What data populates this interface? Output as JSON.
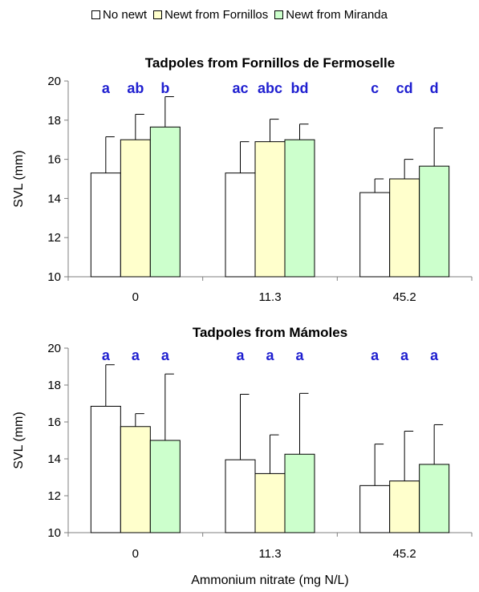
{
  "legend": [
    {
      "label": "No newt",
      "color": "#ffffff"
    },
    {
      "label": "Newt from Fornillos",
      "color": "#ffffcc"
    },
    {
      "label": "Newt from Miranda",
      "color": "#ccffcc"
    }
  ],
  "colors": {
    "significance_letters": "#1f1fd0"
  },
  "chart_data": [
    {
      "type": "bar",
      "title": "Tadpoles from Fornillos de Fermoselle",
      "ylabel": "SVL (mm)",
      "xlabel": "",
      "ylim": [
        10,
        20
      ],
      "yticks": [
        10,
        12,
        14,
        16,
        18,
        20
      ],
      "categories": [
        "0",
        "11.3",
        "45.2"
      ],
      "series": [
        {
          "name": "No newt",
          "values": [
            15.3,
            15.3,
            14.3
          ],
          "error_upper": [
            17.15,
            16.9,
            15.0
          ]
        },
        {
          "name": "Newt from Fornillos",
          "values": [
            17.0,
            16.9,
            15.0
          ],
          "error_upper": [
            18.3,
            18.05,
            16.0
          ]
        },
        {
          "name": "Newt from Miranda",
          "values": [
            17.65,
            17.0,
            15.65
          ],
          "error_upper": [
            19.2,
            17.8,
            17.6
          ]
        }
      ],
      "significance": [
        [
          "a",
          "ab",
          "b"
        ],
        [
          "ac",
          "abc",
          "bd"
        ],
        [
          "c",
          "cd",
          "d"
        ]
      ],
      "grid": false
    },
    {
      "type": "bar",
      "title": "Tadpoles from Mámoles",
      "ylabel": "SVL (mm)",
      "xlabel": "Ammonium nitrate (mg N/L)",
      "ylim": [
        10,
        20
      ],
      "yticks": [
        10,
        12,
        14,
        16,
        18,
        20
      ],
      "categories": [
        "0",
        "11.3",
        "45.2"
      ],
      "series": [
        {
          "name": "No newt",
          "values": [
            16.85,
            13.95,
            12.55
          ],
          "error_upper": [
            19.1,
            17.5,
            14.8
          ]
        },
        {
          "name": "Newt from Fornillos",
          "values": [
            15.75,
            13.2,
            12.8
          ],
          "error_upper": [
            16.45,
            15.3,
            15.5
          ]
        },
        {
          "name": "Newt from Miranda",
          "values": [
            15.0,
            14.25,
            13.7
          ],
          "error_upper": [
            18.6,
            17.55,
            15.85
          ]
        }
      ],
      "significance": [
        [
          "a",
          "a",
          "a"
        ],
        [
          "a",
          "a",
          "a"
        ],
        [
          "a",
          "a",
          "a"
        ]
      ],
      "grid": false
    }
  ]
}
